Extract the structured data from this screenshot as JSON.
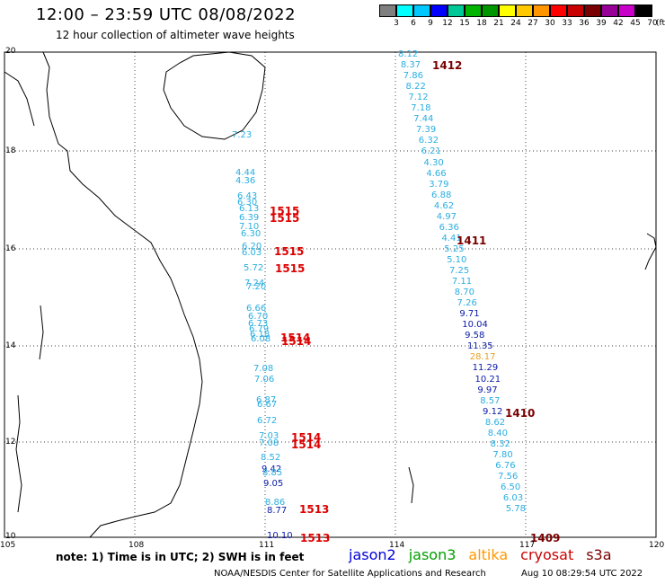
{
  "header": {
    "title": "12:00 – 23:59 UTC 08/08/2022",
    "subtitle": "12 hour collection of altimeter wave heights"
  },
  "legend": {
    "unit": "(ft)",
    "ticks": [
      "3",
      "6",
      "9",
      "12",
      "15",
      "18",
      "21",
      "24",
      "27",
      "30",
      "33",
      "36",
      "39",
      "42",
      "45",
      "70"
    ],
    "colors": [
      "#7f7f7f",
      "#00ffff",
      "#00c8ff",
      "#0000ff",
      "#00c896",
      "#00b400",
      "#009600",
      "#ffff00",
      "#ffc800",
      "#ff9600",
      "#ff0000",
      "#c80000",
      "#780000",
      "#960096",
      "#c800c8",
      "#000000"
    ]
  },
  "map": {
    "lat_ticks": [
      "20",
      "18",
      "16",
      "14",
      "12",
      "10"
    ],
    "lon_ticks": [
      "105",
      "108",
      "111",
      "114",
      "117",
      "120"
    ]
  },
  "tracks": [
    {
      "pass": "1412",
      "pass_color": "#7a0000",
      "points": [
        {
          "v": "8.12",
          "c": "#2aaee0"
        },
        {
          "v": "8.37",
          "c": "#2aaee0"
        },
        {
          "v": "7.86",
          "c": "#2aaee0"
        },
        {
          "v": "8.22",
          "c": "#2aaee0"
        },
        {
          "v": "7.12",
          "c": "#2aaee0"
        },
        {
          "v": "7.18",
          "c": "#2aaee0"
        },
        {
          "v": "7.44",
          "c": "#2aaee0"
        },
        {
          "v": "7.39",
          "c": "#2aaee0"
        },
        {
          "v": "6.32",
          "c": "#2aaee0"
        },
        {
          "v": "6.21",
          "c": "#2aaee0"
        },
        {
          "v": "4.30",
          "c": "#2aaee0"
        },
        {
          "v": "4.66",
          "c": "#2aaee0"
        },
        {
          "v": "3.79",
          "c": "#2aaee0"
        },
        {
          "v": "6.88",
          "c": "#2aaee0"
        },
        {
          "v": "4.62",
          "c": "#2aaee0"
        },
        {
          "v": "4.97",
          "c": "#2aaee0"
        }
      ]
    },
    {
      "pass": "1411",
      "pass_color": "#7a0000",
      "points": [
        {
          "v": "6.36",
          "c": "#2aaee0"
        },
        {
          "v": "4.41",
          "c": "#2aaee0"
        },
        {
          "v": "5.25",
          "c": "#2aaee0"
        },
        {
          "v": "5.10",
          "c": "#2aaee0"
        },
        {
          "v": "7.25",
          "c": "#2aaee0"
        },
        {
          "v": "7.11",
          "c": "#2aaee0"
        },
        {
          "v": "8.70",
          "c": "#2aaee0"
        },
        {
          "v": "7.26",
          "c": "#2aaee0"
        },
        {
          "v": "9.71",
          "c": "#0a1aa8"
        },
        {
          "v": "10.04",
          "c": "#0a1aa8"
        },
        {
          "v": "9.58",
          "c": "#0a1aa8"
        },
        {
          "v": "11.35",
          "c": "#0a1aa8"
        },
        {
          "v": "28.17",
          "c": "#e8a020"
        },
        {
          "v": "11.29",
          "c": "#0a1aa8"
        },
        {
          "v": "10.21",
          "c": "#0a1aa8"
        }
      ]
    },
    {
      "pass": "1410",
      "pass_color": "#7a0000",
      "points": [
        {
          "v": "9.97",
          "c": "#0a1aa8"
        },
        {
          "v": "8.57",
          "c": "#2aaee0"
        },
        {
          "v": "9.12",
          "c": "#0a1aa8"
        },
        {
          "v": "8.62",
          "c": "#2aaee0"
        },
        {
          "v": "8.40",
          "c": "#2aaee0"
        },
        {
          "v": "8.32",
          "c": "#2aaee0"
        },
        {
          "v": "7.80",
          "c": "#2aaee0"
        },
        {
          "v": "6.76",
          "c": "#2aaee0"
        },
        {
          "v": "7.56",
          "c": "#2aaee0"
        },
        {
          "v": "6.50",
          "c": "#2aaee0"
        },
        {
          "v": "6.03",
          "c": "#2aaee0"
        },
        {
          "v": "5.78",
          "c": "#2aaee0"
        }
      ]
    },
    {
      "pass": "1409",
      "pass_color": "#7a0000",
      "points": []
    }
  ],
  "west_points": [
    {
      "v": "7.23",
      "c": "#2aaee0"
    },
    {
      "v": "4.44",
      "c": "#2aaee0"
    },
    {
      "v": "4.36",
      "c": "#2aaee0"
    },
    {
      "v": "6.43",
      "c": "#2aaee0"
    },
    {
      "v": "6.30",
      "c": "#2aaee0"
    },
    {
      "v": "6.13",
      "c": "#2aaee0"
    },
    {
      "v": "6.39",
      "c": "#2aaee0"
    },
    {
      "v": "7.10",
      "c": "#2aaee0"
    },
    {
      "v": "6.30",
      "c": "#2aaee0"
    },
    {
      "v": "6.20",
      "c": "#2aaee0"
    },
    {
      "v": "6.03",
      "c": "#2aaee0"
    },
    {
      "v": "5.72",
      "c": "#2aaee0"
    },
    {
      "v": "7.24",
      "c": "#2aaee0"
    },
    {
      "v": "7.20",
      "c": "#2aaee0"
    },
    {
      "v": "6.66",
      "c": "#2aaee0"
    },
    {
      "v": "6.70",
      "c": "#2aaee0"
    },
    {
      "v": "6.73",
      "c": "#2aaee0"
    },
    {
      "v": "6.79",
      "c": "#2aaee0"
    },
    {
      "v": "6.18",
      "c": "#2aaee0"
    },
    {
      "v": "6.08",
      "c": "#2aaee0"
    },
    {
      "v": "7.08",
      "c": "#2aaee0"
    },
    {
      "v": "7.06",
      "c": "#2aaee0"
    },
    {
      "v": "6.87",
      "c": "#2aaee0"
    },
    {
      "v": "6.67",
      "c": "#2aaee0"
    },
    {
      "v": "6.72",
      "c": "#2aaee0"
    },
    {
      "v": "7.03",
      "c": "#2aaee0"
    },
    {
      "v": "7.08",
      "c": "#2aaee0"
    },
    {
      "v": "8.52",
      "c": "#2aaee0"
    },
    {
      "v": "9.42",
      "c": "#0a1aa8"
    },
    {
      "v": "8.85",
      "c": "#2aaee0"
    },
    {
      "v": "9.05",
      "c": "#0a1aa8"
    },
    {
      "v": "8.86",
      "c": "#2aaee0"
    },
    {
      "v": "8.77",
      "c": "#0a1aa8"
    },
    {
      "v": "10.10",
      "c": "#0a1aa8"
    }
  ],
  "west_passes": [
    {
      "pass": "1515"
    },
    {
      "pass": "1515"
    },
    {
      "pass": "1515"
    },
    {
      "pass": "1515"
    },
    {
      "pass": "1514"
    },
    {
      "pass": "1514"
    },
    {
      "pass": "1514"
    },
    {
      "pass": "1514"
    },
    {
      "pass": "1513"
    },
    {
      "pass": "1513"
    }
  ],
  "satellites": [
    {
      "name": "jason2",
      "color": "#0000dd"
    },
    {
      "name": "jason3",
      "color": "#00a000"
    },
    {
      "name": "altika",
      "color": "#ff9900"
    },
    {
      "name": "cryosat",
      "color": "#cc0000"
    },
    {
      "name": "s3a",
      "color": "#7a0000"
    }
  ],
  "footer": {
    "note": "note:  1) Time is in UTC;  2) SWH is in feet",
    "credit": "NOAA/NESDIS Center for Satellite Applications and Research",
    "timestamp": "Aug 10 08:29:54 UTC 2022"
  }
}
